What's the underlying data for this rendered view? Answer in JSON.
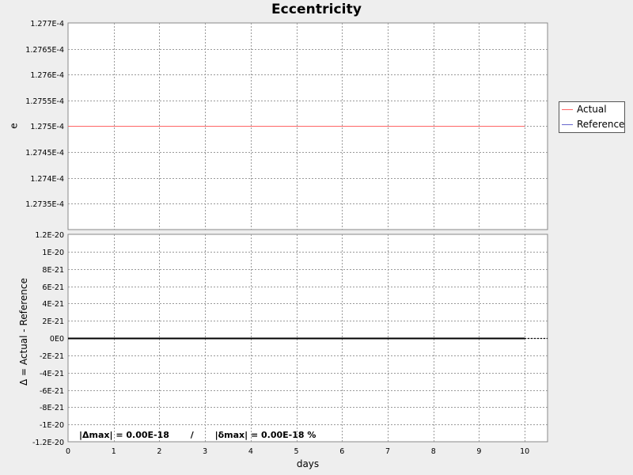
{
  "chart_data": [
    {
      "type": "line",
      "title": "Eccentricity",
      "ylabel": "e",
      "xlabel": "",
      "x": [
        0,
        10
      ],
      "series": [
        {
          "name": "Actual",
          "values": [
            0.0001275,
            0.0001275
          ],
          "color": "#ff6666"
        },
        {
          "name": "Reference",
          "values": [
            0.0001275,
            0.0001275
          ],
          "color": "#6666cc"
        }
      ],
      "xlim": [
        0,
        10.5
      ],
      "ylim": [
        0.0001273,
        0.0001277
      ],
      "ytick_values": [
        0.00012735,
        0.0001274,
        0.00012745,
        0.0001275,
        0.00012755,
        0.0001276,
        0.00012765,
        0.0001277
      ],
      "ytick_labels": [
        "1.2735E-4",
        "1.274E-4",
        "1.2745E-4",
        "1.275E-4",
        "1.2755E-4",
        "1.276E-4",
        "1.2765E-4",
        "1.277E-4"
      ],
      "xtick_values": [
        1,
        2,
        3,
        4,
        5,
        6,
        7,
        8,
        9,
        10
      ],
      "grid": true,
      "legend_position": "right"
    },
    {
      "type": "line",
      "title": "",
      "ylabel": "Δ = Actual - Reference",
      "xlabel": "days",
      "x": [
        0,
        10
      ],
      "series": [
        {
          "name": "",
          "values": [
            0,
            0
          ],
          "color": "#000000"
        }
      ],
      "xlim": [
        0,
        10.5
      ],
      "ylim": [
        -1.2e-20,
        1.2e-20
      ],
      "ytick_values": [
        1.2e-20,
        1e-20,
        8e-21,
        6e-21,
        4e-21,
        2e-21,
        0,
        -2e-21,
        -4e-21,
        -6e-21,
        -8e-21,
        -1e-20,
        -1.2e-20
      ],
      "ytick_labels": [
        "1.2E-20",
        "1E-20",
        "8E-21",
        "6E-21",
        "4E-21",
        "2E-21",
        "0E0",
        "-2E-21",
        "-4E-21",
        "-6E-21",
        "-8E-21",
        "-1E-20",
        "-1.2E-20"
      ],
      "xtick_values": [
        0,
        1,
        2,
        3,
        4,
        5,
        6,
        7,
        8,
        9,
        10
      ],
      "xtick_labels": [
        "0",
        "1",
        "2",
        "3",
        "4",
        "5",
        "6",
        "7",
        "8",
        "9",
        "10"
      ],
      "grid": true,
      "annotation": "|Δmax| = 0.00E-18       /       |δmax| = 0.00E-18 %"
    }
  ],
  "colors": {
    "background": "#eeeeee",
    "plot_background": "#ffffff",
    "grid": "#9a9a9a",
    "actual": "#ff6666",
    "reference": "#6666cc",
    "delta": "#000000"
  }
}
